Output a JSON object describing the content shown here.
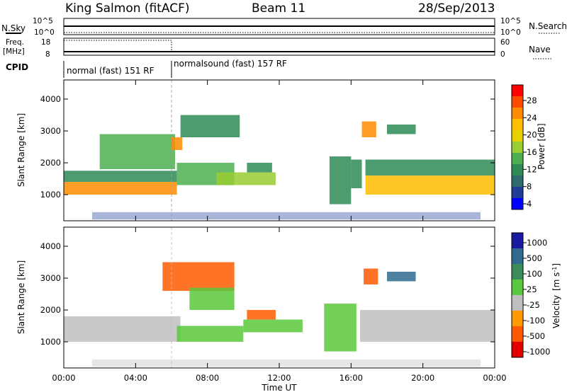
{
  "header": {
    "station": "King Salmon (fitACF)",
    "beam": "Beam 11",
    "date": "28/Sep/2013"
  },
  "top_panels": {
    "nsky_label": "N.Sky",
    "nsearch_label": "N.Search",
    "nsky_ticks": [
      "10^5",
      "10^0"
    ],
    "nsearch_ticks": [
      "10^5",
      "10^0"
    ],
    "freq_label_1": "Freq.",
    "freq_label_2": "[MHz]",
    "freq_ticks": [
      "18",
      "8"
    ],
    "nave_label": "Nave",
    "nave_ticks": [
      "60",
      "0"
    ],
    "cpid_label": "CPID",
    "cpid_segments": [
      {
        "label": "normal (fast) 151 RF",
        "start_hour": 0,
        "end_hour": 6
      },
      {
        "label": "normalsound (fast) 157 RF",
        "start_hour": 6,
        "end_hour": 24
      }
    ]
  },
  "power_colorbar": {
    "label": "Power [dB]",
    "ticks": [
      "28",
      "24",
      "20",
      "16",
      "12",
      "8",
      "4"
    ],
    "colors": [
      "#ff0000",
      "#ff4a00",
      "#ff8c00",
      "#ffbd00",
      "#e6d200",
      "#9acd32",
      "#4caf50",
      "#2e8b57",
      "#2f6b6b",
      "#1f3d99",
      "#0000ff"
    ]
  },
  "velocity_colorbar": {
    "label_main": "Velocity",
    "label_unit": "[m s",
    "label_sup": "-1",
    "label_close": "]",
    "ticks": [
      "1000",
      "500",
      "100",
      "25",
      "-25",
      "-100",
      "-500",
      "-1000"
    ],
    "colors": [
      "#1a1aa0",
      "#2f6b8f",
      "#3a8c5a",
      "#5ac83c",
      "#bfbfbf",
      "#ff9a00",
      "#ff5a00",
      "#e00000"
    ]
  },
  "chart_data": [
    {
      "type": "heatmap",
      "title": "Power",
      "xlabel": "Time UT",
      "ylabel": "Slant Range [km]",
      "x_ticks": [
        "00:00",
        "04:00",
        "08:00",
        "12:00",
        "16:00",
        "20:00",
        "00:00"
      ],
      "y_ticks": [
        1000,
        2000,
        3000,
        4000
      ],
      "xlim_hours": [
        0,
        24
      ],
      "ylim_km": [
        180,
        4600
      ],
      "regions": [
        {
          "t0": 0,
          "t1": 6.3,
          "r0": 1000,
          "r1": 1400,
          "power": 26
        },
        {
          "t0": 0,
          "t1": 6.3,
          "r0": 1400,
          "r1": 1750,
          "power": 10
        },
        {
          "t0": 2,
          "t1": 6.2,
          "r0": 1800,
          "r1": 2900,
          "power": 14
        },
        {
          "t0": 6,
          "t1": 6.6,
          "r0": 2400,
          "r1": 2800,
          "power": 26
        },
        {
          "t0": 6.5,
          "t1": 9.8,
          "r0": 2800,
          "r1": 3500,
          "power": 10
        },
        {
          "t0": 6.3,
          "t1": 9.5,
          "r0": 1300,
          "r1": 2000,
          "power": 14
        },
        {
          "t0": 8.5,
          "t1": 11.8,
          "r0": 1300,
          "r1": 1700,
          "power": 18
        },
        {
          "t0": 10.2,
          "t1": 11.6,
          "r0": 1700,
          "r1": 2000,
          "power": 10
        },
        {
          "t0": 14.8,
          "t1": 16,
          "r0": 700,
          "r1": 2200,
          "power": 10
        },
        {
          "t0": 16,
          "t1": 16.6,
          "r0": 1200,
          "r1": 2100,
          "power": 12
        },
        {
          "t0": 16.8,
          "t1": 24,
          "r0": 1000,
          "r1": 1600,
          "power": 22
        },
        {
          "t0": 16.8,
          "t1": 24,
          "r0": 1600,
          "r1": 2100,
          "power": 10
        },
        {
          "t0": 16.6,
          "t1": 17.4,
          "r0": 2800,
          "r1": 3300,
          "power": 26
        },
        {
          "t0": 18,
          "t1": 19.6,
          "r0": 2900,
          "r1": 3200,
          "power": 12
        }
      ]
    },
    {
      "type": "heatmap",
      "title": "Velocity",
      "xlabel": "Time UT",
      "ylabel": "Slant Range [km]",
      "x_ticks": [
        "00:00",
        "04:00",
        "08:00",
        "12:00",
        "16:00",
        "20:00",
        "00:00"
      ],
      "y_ticks": [
        1000,
        2000,
        3000,
        4000
      ],
      "xlim_hours": [
        0,
        24
      ],
      "ylim_km": [
        180,
        4600
      ],
      "regions": [
        {
          "t0": 0,
          "t1": 6.5,
          "r0": 1000,
          "r1": 1800,
          "velocity": 0
        },
        {
          "t0": 5.5,
          "t1": 9.5,
          "r0": 2600,
          "r1": 3500,
          "velocity": -300
        },
        {
          "t0": 7,
          "t1": 9.5,
          "r0": 2000,
          "r1": 2700,
          "velocity": 80
        },
        {
          "t0": 6.3,
          "t1": 10,
          "r0": 1000,
          "r1": 1500,
          "velocity": 60
        },
        {
          "t0": 10,
          "t1": 13.3,
          "r0": 1300,
          "r1": 1700,
          "velocity": 60
        },
        {
          "t0": 10.2,
          "t1": 11.8,
          "r0": 1700,
          "r1": 2000,
          "velocity": -400
        },
        {
          "t0": 14.5,
          "t1": 16.3,
          "r0": 700,
          "r1": 2200,
          "velocity": 60
        },
        {
          "t0": 16.5,
          "t1": 24,
          "r0": 1000,
          "r1": 2000,
          "velocity": 0
        },
        {
          "t0": 16.7,
          "t1": 17.5,
          "r0": 2800,
          "r1": 3300,
          "velocity": -300
        },
        {
          "t0": 18,
          "t1": 19.6,
          "r0": 2900,
          "r1": 3200,
          "velocity": 300
        }
      ]
    }
  ]
}
